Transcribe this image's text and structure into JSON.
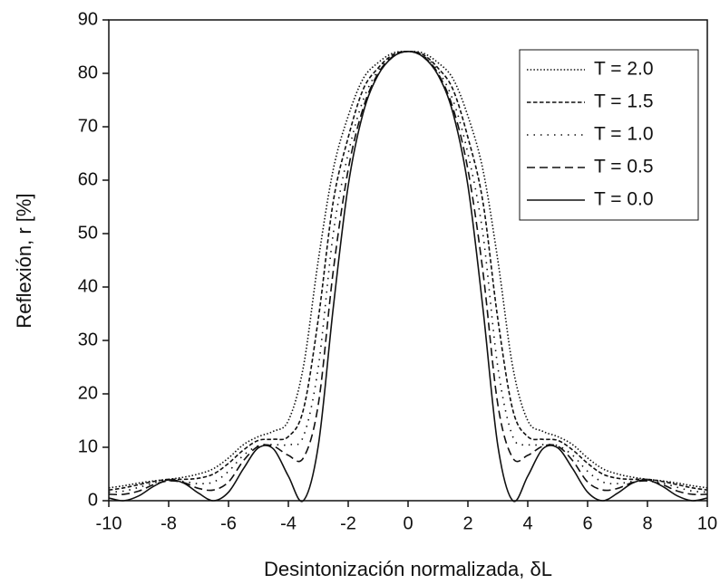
{
  "chart_data": {
    "type": "line",
    "xlabel": "Desintonización normalizada, δL",
    "ylabel": "Reflexión, r [%]",
    "xlim": [
      -10,
      10
    ],
    "ylim": [
      0,
      90
    ],
    "xticks": [
      -10,
      -8,
      -6,
      -4,
      -2,
      0,
      2,
      4,
      6,
      8,
      10
    ],
    "yticks": [
      0,
      10,
      20,
      30,
      40,
      50,
      60,
      70,
      80,
      90
    ],
    "legend": "upper right",
    "x": [
      -10,
      -9.5,
      -9,
      -8.5,
      -8,
      -7.5,
      -7,
      -6.5,
      -6,
      -5.5,
      -5,
      -4.5,
      -4,
      -3.5,
      -3,
      -2.5,
      -2,
      -1.5,
      -1,
      -0.5,
      0,
      0.5,
      1,
      1.5,
      2,
      2.5,
      3,
      3.5,
      4,
      4.5,
      5,
      5.5,
      6,
      6.5,
      7,
      7.5,
      8,
      8.5,
      9,
      9.5,
      10
    ],
    "series": [
      {
        "name": "T = 2.0",
        "color": "#111111",
        "values": [
          2.4,
          2.8,
          3.3,
          3.7,
          4,
          4.4,
          5,
          6,
          8,
          10.5,
          12,
          13,
          15,
          25,
          45,
          62,
          72,
          79,
          82,
          83.8,
          84.1,
          83.8,
          82,
          79,
          72,
          62,
          45,
          25,
          15,
          13,
          12,
          10.5,
          8,
          6,
          5,
          4.4,
          4,
          3.7,
          3.3,
          2.8,
          2.4
        ]
      },
      {
        "name": "T = 1.5",
        "color": "#111111",
        "values": [
          2.0,
          2.4,
          3,
          3.6,
          4,
          4,
          4.2,
          5,
          7,
          9.5,
          11.3,
          11.5,
          12,
          17,
          34,
          56,
          68,
          77,
          81,
          83.5,
          84.1,
          83.5,
          81,
          77,
          68,
          56,
          34,
          17,
          12,
          11.5,
          11.3,
          9.5,
          7,
          5,
          4.2,
          4,
          4,
          3.6,
          3,
          2.4,
          2.0
        ]
      },
      {
        "name": "T = 1.0",
        "color": "#111111",
        "values": [
          1.6,
          1.8,
          2.5,
          3.3,
          3.8,
          3.6,
          3.2,
          3.5,
          5.5,
          8.5,
          10.3,
          10.5,
          10.5,
          12,
          25,
          50,
          65,
          75,
          80.5,
          83.3,
          84.1,
          83.3,
          80.5,
          75,
          65,
          50,
          25,
          12,
          10.5,
          10.5,
          10.3,
          8.5,
          5.5,
          3.5,
          3.2,
          3.6,
          3.8,
          3.3,
          2.5,
          1.8,
          1.6
        ]
      },
      {
        "name": "T = 0.5",
        "color": "#111111",
        "values": [
          1.2,
          1.2,
          1.8,
          3.0,
          3.7,
          3.4,
          2.3,
          2.0,
          3.5,
          7.5,
          10.2,
          10.2,
          8.5,
          8,
          18,
          43,
          62,
          73.5,
          80,
          83.2,
          84.1,
          83.2,
          80,
          73.5,
          62,
          43,
          18,
          8,
          8.5,
          10.2,
          10.2,
          7.5,
          3.5,
          2.0,
          2.3,
          3.4,
          3.7,
          3.0,
          1.8,
          1.2,
          1.2
        ]
      },
      {
        "name": "T = 0.0",
        "color": "#111111",
        "values": [
          0.5,
          0.0,
          0.9,
          2.7,
          3.9,
          3.3,
          1.4,
          0.0,
          1.6,
          6.0,
          9.9,
          9.7,
          4.6,
          0.0,
          10.3,
          36.1,
          59.0,
          72.6,
          79.7,
          83.1,
          84.1,
          83.1,
          79.7,
          72.6,
          59.0,
          36.1,
          10.3,
          0.0,
          4.6,
          9.7,
          9.9,
          6.0,
          1.6,
          0.0,
          1.4,
          3.3,
          3.9,
          2.7,
          0.9,
          0.0,
          0.5
        ]
      }
    ]
  }
}
